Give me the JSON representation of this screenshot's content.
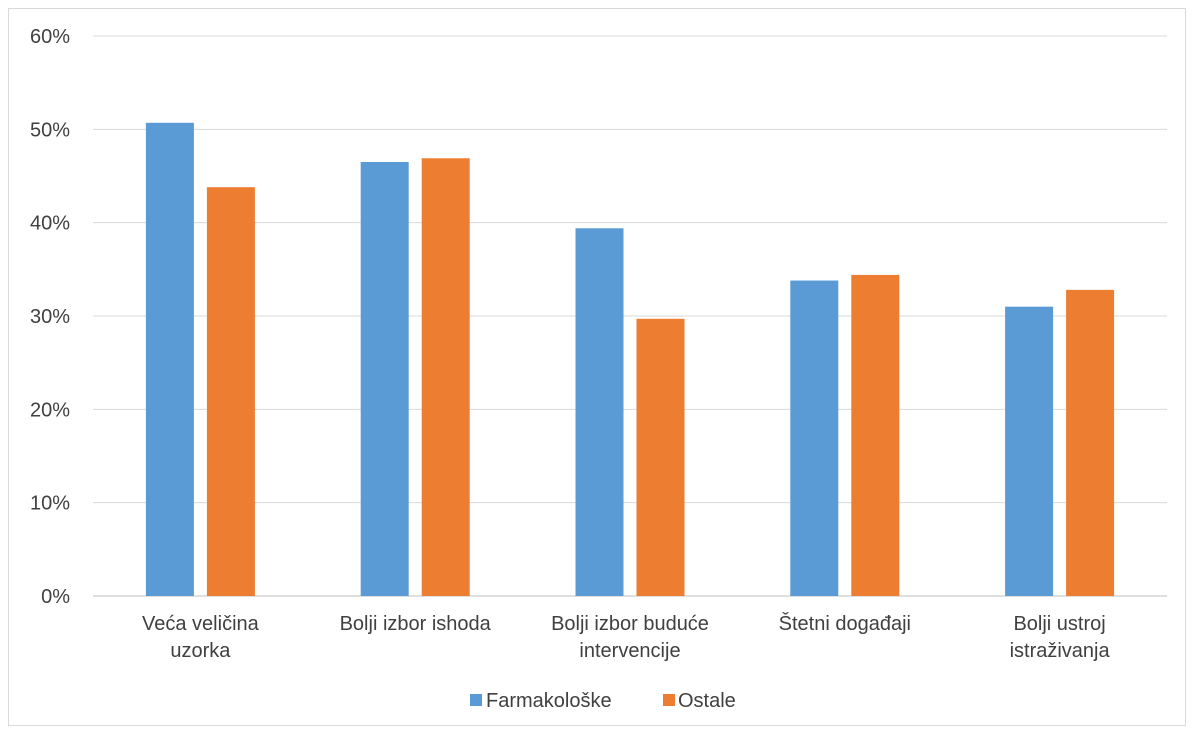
{
  "chart_data": {
    "type": "bar",
    "title": "",
    "xlabel": "",
    "ylabel": "",
    "ylim": [
      0,
      0.6
    ],
    "yticks": [
      "0%",
      "10%",
      "20%",
      "30%",
      "40%",
      "50%",
      "60%"
    ],
    "grid": true,
    "legend_position": "bottom",
    "categories": [
      [
        "Veća veličina",
        "uzorka"
      ],
      [
        "Bolji izbor ishoda"
      ],
      [
        "Bolji izbor buduće",
        "intervencije"
      ],
      [
        "Štetni događaji"
      ],
      [
        "Bolji ustroj",
        "istraživanja"
      ]
    ],
    "series": [
      {
        "name": "Farmakološke",
        "color": "#5b9bd5",
        "values": [
          0.507,
          0.465,
          0.394,
          0.338,
          0.31
        ]
      },
      {
        "name": "Ostale",
        "color": "#ed7d31",
        "values": [
          0.438,
          0.469,
          0.297,
          0.344,
          0.328
        ]
      }
    ]
  }
}
